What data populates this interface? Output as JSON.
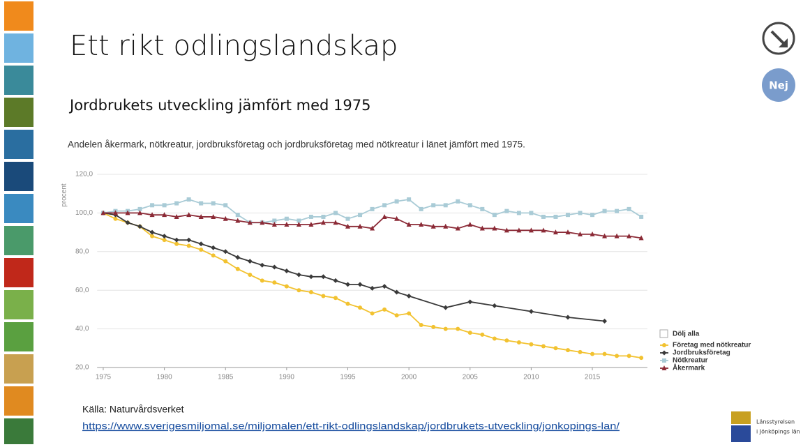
{
  "header": {
    "title": "Ett rikt odlingslandskap",
    "subtitle": "Jordbrukets utveckling jämfört med 1975",
    "button": "Nej"
  },
  "chart_data": {
    "type": "line",
    "title": "Andelen åkermark, nötkreatur, jordbruksföretag och jordbruksföretag med nötkreatur i länet jämfört med 1975.",
    "y_label": "procent",
    "legend_toggle": "Dölj alla",
    "xlim": [
      1974.5,
      2019.5
    ],
    "xticks": [
      1975,
      1980,
      1985,
      1990,
      1995,
      2000,
      2005,
      2010,
      2015
    ],
    "ylim": [
      20,
      120
    ],
    "yticks": [
      {
        "value": 20,
        "label": "20,0"
      },
      {
        "value": 40,
        "label": "40,0"
      },
      {
        "value": 60,
        "label": "60,0"
      },
      {
        "value": 80,
        "label": "80,0"
      },
      {
        "value": 100,
        "label": "100,0"
      },
      {
        "value": 120,
        "label": "120,0"
      }
    ],
    "series": [
      {
        "name": "Företag med nötkreatur",
        "color": "#f2c230",
        "marker": "circle",
        "x": [
          1975,
          1976,
          1977,
          1978,
          1979,
          1980,
          1981,
          1982,
          1983,
          1984,
          1985,
          1986,
          1987,
          1988,
          1989,
          1990,
          1991,
          1992,
          1993,
          1994,
          1995,
          1996,
          1997,
          1998,
          1999,
          2000,
          2001,
          2002,
          2003,
          2004,
          2005,
          2006,
          2007,
          2008,
          2009,
          2010,
          2011,
          2012,
          2013,
          2014,
          2015,
          2016,
          2017,
          2018,
          2019
        ],
        "values": [
          100,
          97,
          95,
          93,
          88,
          86,
          84,
          83,
          81,
          78,
          75,
          71,
          68,
          65,
          64,
          62,
          60,
          59,
          57,
          56,
          53,
          51,
          48,
          50,
          47,
          48,
          42,
          41,
          40,
          40,
          38,
          37,
          35,
          34,
          33,
          32,
          31,
          30,
          29,
          28,
          27,
          27,
          26,
          26,
          25
        ]
      },
      {
        "name": "Jordbruksföretag",
        "color": "#3a3a3a",
        "marker": "diamond",
        "x": [
          1975,
          1976,
          1977,
          1978,
          1979,
          1980,
          1981,
          1982,
          1983,
          1984,
          1985,
          1986,
          1987,
          1988,
          1989,
          1990,
          1991,
          1992,
          1993,
          1994,
          1995,
          1996,
          1997,
          1998,
          1999,
          2000,
          2003,
          2005,
          2007,
          2010,
          2013,
          2016
        ],
        "values": [
          100,
          99,
          95,
          93,
          90,
          88,
          86,
          86,
          84,
          82,
          80,
          77,
          75,
          73,
          72,
          70,
          68,
          67,
          67,
          65,
          63,
          63,
          61,
          62,
          59,
          57,
          51,
          54,
          52,
          49,
          46,
          44
        ]
      },
      {
        "name": "Nötkreatur",
        "color": "#a9cbd6",
        "marker": "square",
        "x": [
          1975,
          1976,
          1977,
          1978,
          1979,
          1980,
          1981,
          1982,
          1983,
          1984,
          1985,
          1986,
          1987,
          1988,
          1989,
          1990,
          1991,
          1992,
          1993,
          1994,
          1995,
          1996,
          1997,
          1998,
          1999,
          2000,
          2001,
          2002,
          2003,
          2004,
          2005,
          2006,
          2007,
          2008,
          2009,
          2010,
          2011,
          2012,
          2013,
          2014,
          2015,
          2016,
          2017,
          2018,
          2019
        ],
        "values": [
          100,
          101,
          101,
          102,
          104,
          104,
          105,
          107,
          105,
          105,
          104,
          99,
          95,
          95,
          96,
          97,
          96,
          98,
          98,
          100,
          97,
          99,
          102,
          104,
          106,
          107,
          102,
          104,
          104,
          106,
          104,
          102,
          99,
          101,
          100,
          100,
          98,
          98,
          99,
          100,
          99,
          101,
          101,
          102,
          98
        ]
      },
      {
        "name": "Åkermark",
        "color": "#8b2a36",
        "marker": "triangle",
        "x": [
          1975,
          1976,
          1977,
          1978,
          1979,
          1980,
          1981,
          1982,
          1983,
          1984,
          1985,
          1986,
          1987,
          1988,
          1989,
          1990,
          1991,
          1992,
          1993,
          1994,
          1995,
          1996,
          1997,
          1998,
          1999,
          2000,
          2001,
          2002,
          2003,
          2004,
          2005,
          2006,
          2007,
          2008,
          2009,
          2010,
          2011,
          2012,
          2013,
          2014,
          2015,
          2016,
          2017,
          2018,
          2019
        ],
        "values": [
          100,
          100,
          100,
          100,
          99,
          99,
          98,
          99,
          98,
          98,
          97,
          96,
          95,
          95,
          94,
          94,
          94,
          94,
          95,
          95,
          93,
          93,
          92,
          98,
          97,
          94,
          94,
          93,
          93,
          92,
          94,
          92,
          92,
          91,
          91,
          91,
          91,
          90,
          90,
          89,
          89,
          88,
          88,
          88,
          87
        ]
      }
    ]
  },
  "source": {
    "label": "Källa: Naturvårdsverket",
    "url": "https://www.sverigesmiljomal.se/miljomalen/ett-rikt-odlingslandskap/jordbrukets-utveckling/jonkopings-lan/"
  },
  "logo": {
    "line1": "Länsstyrelsen",
    "line2": "i Jönköpings län"
  }
}
